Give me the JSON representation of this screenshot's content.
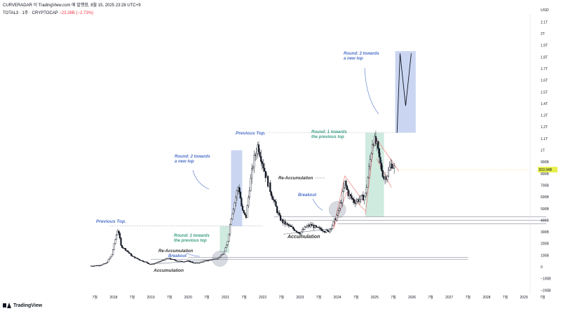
{
  "header": {
    "author_line": "CURVERADAR 이 TradingView.com 에 발행함, 8월 15, 2025 23:28 UTC+9",
    "symbol": "TOTAL3 · 1주 · CRYPTOCAP",
    "change": "−23.38B (−2.73%)"
  },
  "footer": {
    "brand": "TradingView"
  },
  "colors": {
    "candle": "#131722",
    "round1_box": "#a8d8c4",
    "round2_box": "#9fb4e6",
    "round1_text": "#3d9f85",
    "round2_text": "#4e71c7",
    "dark_text": "#333333",
    "price_badge": "#e6f04a",
    "breakout_circle": "#b7bcc9",
    "channel_red": "#ef6b6b"
  },
  "chart_data": {
    "type": "candlestick",
    "currency_label": "USD",
    "current_price_label": "833.94B",
    "y_ticks": [
      "2.1T",
      "2T",
      "1.9T",
      "1.8T",
      "1.7T",
      "1.6T",
      "1.5T",
      "1.4T",
      "1.3T",
      "1.2T",
      "1.1T",
      "1T",
      "900B",
      "800B",
      "700B",
      "600B",
      "500B",
      "400B",
      "300B",
      "200B",
      "100B",
      "0",
      "−100B",
      "−200B"
    ],
    "x_ticks": [
      "7월",
      "2018",
      "7월",
      "2019",
      "7월",
      "2020",
      "7월",
      "2021",
      "7월",
      "2022",
      "7월",
      "2023",
      "7월",
      "2024",
      "7월",
      "2025",
      "7월",
      "2026",
      "7월",
      "2027",
      "7월",
      "2028",
      "7월",
      "2029",
      "7월"
    ],
    "path_points": [
      [
        2017.4,
        8
      ],
      [
        2017.6,
        12
      ],
      [
        2017.8,
        30
      ],
      [
        2017.95,
        100
      ],
      [
        2018.05,
        240
      ],
      [
        2018.12,
        330
      ],
      [
        2018.2,
        180
      ],
      [
        2018.35,
        140
      ],
      [
        2018.5,
        90
      ],
      [
        2018.7,
        60
      ],
      [
        2018.9,
        35
      ],
      [
        2019.0,
        20
      ],
      [
        2019.2,
        40
      ],
      [
        2019.45,
        75
      ],
      [
        2019.6,
        60
      ],
      [
        2019.8,
        45
      ],
      [
        2020.0,
        50
      ],
      [
        2020.2,
        30
      ],
      [
        2020.4,
        45
      ],
      [
        2020.6,
        60
      ],
      [
        2020.8,
        75
      ],
      [
        2020.95,
        115
      ],
      [
        2021.05,
        200
      ],
      [
        2021.15,
        420
      ],
      [
        2021.25,
        560
      ],
      [
        2021.35,
        700
      ],
      [
        2021.45,
        480
      ],
      [
        2021.55,
        420
      ],
      [
        2021.65,
        690
      ],
      [
        2021.75,
        900
      ],
      [
        2021.87,
        1050
      ],
      [
        2021.95,
        950
      ],
      [
        2022.1,
        760
      ],
      [
        2022.3,
        560
      ],
      [
        2022.45,
        420
      ],
      [
        2022.55,
        380
      ],
      [
        2022.7,
        350
      ],
      [
        2022.85,
        320
      ],
      [
        2023.0,
        290
      ],
      [
        2023.15,
        340
      ],
      [
        2023.3,
        360
      ],
      [
        2023.45,
        330
      ],
      [
        2023.6,
        320
      ],
      [
        2023.75,
        300
      ],
      [
        2023.9,
        380
      ],
      [
        2024.0,
        450
      ],
      [
        2024.1,
        560
      ],
      [
        2024.2,
        720
      ],
      [
        2024.3,
        620
      ],
      [
        2024.45,
        560
      ],
      [
        2024.6,
        580
      ],
      [
        2024.75,
        610
      ],
      [
        2024.85,
        850
      ],
      [
        2024.95,
        1100
      ],
      [
        2025.05,
        1050
      ],
      [
        2025.15,
        880
      ],
      [
        2025.25,
        760
      ],
      [
        2025.35,
        800
      ],
      [
        2025.45,
        890
      ],
      [
        2025.55,
        833.94
      ]
    ],
    "projection_points": [
      [
        2025.6,
        1150
      ],
      [
        2025.68,
        1830
      ],
      [
        2025.83,
        1380
      ],
      [
        2025.98,
        1830
      ]
    ],
    "annotations": {
      "prev_top_1": "Previous Top.",
      "prev_top_2": "Previous Top.",
      "round1_a": "Round: 1 towards",
      "round1_b": "the previous top",
      "round2_a": "Round: 2 towards",
      "round2_b": "a new top",
      "round1c_a": "Round: 1 towards",
      "round1c_b": "the previous top",
      "round2c_a": "Round: 2 towards",
      "round2c_b": "a new top",
      "reacc_1": "Re-Accumulation",
      "breakout_1": "Breakout",
      "acc_1": "Accumulation",
      "acc_2": "Accumulation",
      "reacc_2": "Re-Accumulation",
      "breakout_2": "Breakout"
    }
  }
}
